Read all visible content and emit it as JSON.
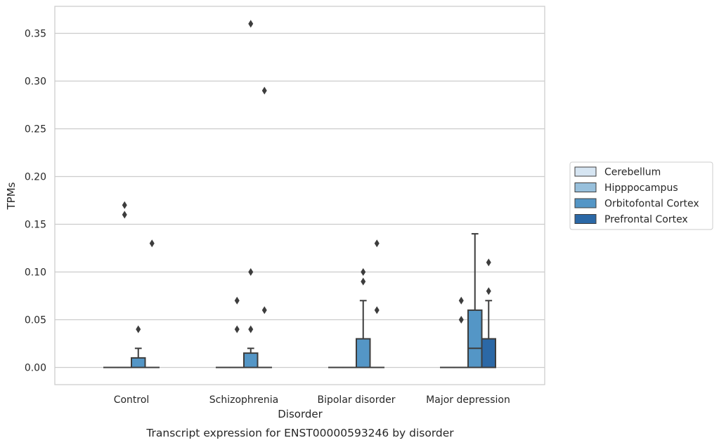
{
  "chart_data": {
    "type": "box",
    "title": "",
    "caption": "Transcript expression for ENST00000593246 by disorder",
    "xlabel": "Disorder",
    "ylabel": "TPMs",
    "ylim": [
      -0.018,
      0.378
    ],
    "yticks": [
      0.0,
      0.05,
      0.1,
      0.15,
      0.2,
      0.25,
      0.3,
      0.35
    ],
    "ytick_labels": [
      "0.00",
      "0.05",
      "0.10",
      "0.15",
      "0.20",
      "0.25",
      "0.30",
      "0.35"
    ],
    "grid": "horizontal",
    "legend_position": "right",
    "categories": [
      "Control",
      "Schizophrenia",
      "Bipolar disorder",
      "Major depression"
    ],
    "series": [
      {
        "name": "Cerebellum",
        "color": "#d6e5f2",
        "boxes": [
          {
            "q1": 0,
            "median": 0,
            "q3": 0,
            "whisker_low": 0,
            "whisker_high": 0,
            "outliers": []
          },
          {
            "q1": 0,
            "median": 0,
            "q3": 0,
            "whisker_low": 0,
            "whisker_high": 0,
            "outliers": []
          },
          {
            "q1": 0,
            "median": 0,
            "q3": 0,
            "whisker_low": 0,
            "whisker_high": 0,
            "outliers": []
          },
          {
            "q1": 0,
            "median": 0,
            "q3": 0,
            "whisker_low": 0,
            "whisker_high": 0,
            "outliers": []
          }
        ]
      },
      {
        "name": "Hipppocampus",
        "color": "#98c0dc",
        "boxes": [
          {
            "q1": 0,
            "median": 0,
            "q3": 0,
            "whisker_low": 0,
            "whisker_high": 0,
            "outliers": [
              0.17,
              0.16
            ]
          },
          {
            "q1": 0,
            "median": 0,
            "q3": 0,
            "whisker_low": 0,
            "whisker_high": 0,
            "outliers": [
              0.07,
              0.04
            ]
          },
          {
            "q1": 0,
            "median": 0,
            "q3": 0,
            "whisker_low": 0,
            "whisker_high": 0,
            "outliers": []
          },
          {
            "q1": 0,
            "median": 0,
            "q3": 0,
            "whisker_low": 0,
            "whisker_high": 0,
            "outliers": [
              0.07,
              0.05
            ]
          }
        ]
      },
      {
        "name": "Orbitofontal Cortex",
        "color": "#5496c6",
        "boxes": [
          {
            "q1": 0,
            "median": 0,
            "q3": 0.01,
            "whisker_low": 0,
            "whisker_high": 0.02,
            "outliers": [
              0.04
            ]
          },
          {
            "q1": 0,
            "median": 0,
            "q3": 0.015,
            "whisker_low": 0,
            "whisker_high": 0.02,
            "outliers": [
              0.36,
              0.1,
              0.04
            ]
          },
          {
            "q1": 0,
            "median": 0,
            "q3": 0.03,
            "whisker_low": 0,
            "whisker_high": 0.07,
            "outliers": [
              0.1,
              0.09
            ]
          },
          {
            "q1": 0,
            "median": 0.02,
            "q3": 0.06,
            "whisker_low": 0,
            "whisker_high": 0.14,
            "outliers": []
          }
        ]
      },
      {
        "name": "Prefrontal Cortex",
        "color": "#2b68a6",
        "boxes": [
          {
            "q1": 0,
            "median": 0,
            "q3": 0,
            "whisker_low": 0,
            "whisker_high": 0,
            "outliers": [
              0.13
            ]
          },
          {
            "q1": 0,
            "median": 0,
            "q3": 0,
            "whisker_low": 0,
            "whisker_high": 0,
            "outliers": [
              0.29,
              0.06
            ]
          },
          {
            "q1": 0,
            "median": 0,
            "q3": 0,
            "whisker_low": 0,
            "whisker_high": 0,
            "outliers": [
              0.13,
              0.06
            ]
          },
          {
            "q1": 0,
            "median": 0,
            "q3": 0.03,
            "whisker_low": 0,
            "whisker_high": 0.07,
            "outliers": [
              0.11,
              0.08
            ]
          }
        ]
      }
    ]
  }
}
